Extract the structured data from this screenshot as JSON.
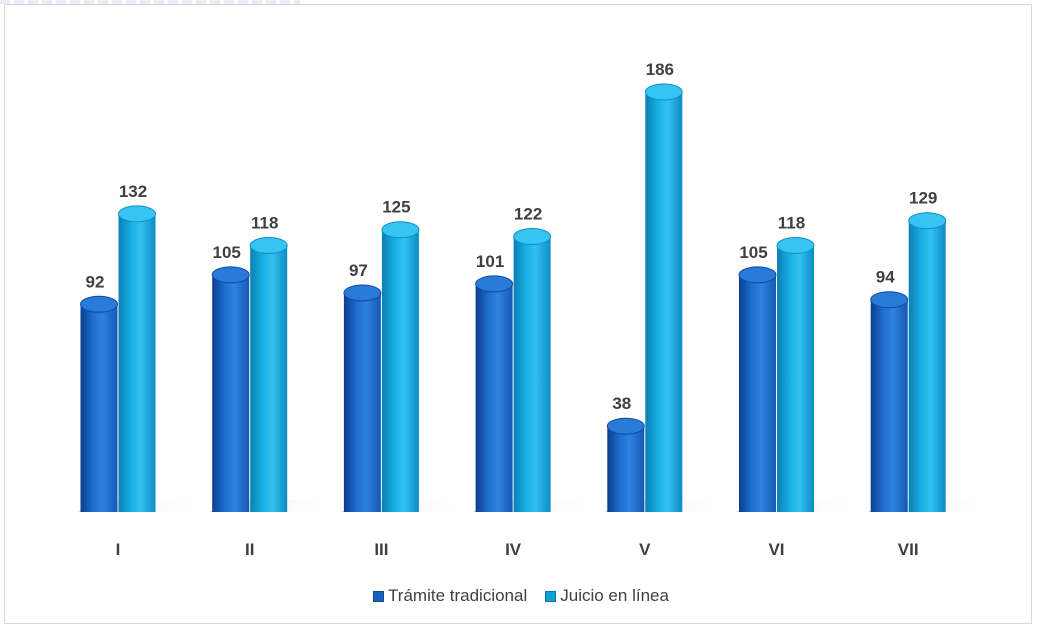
{
  "chart_data": {
    "type": "bar",
    "categories": [
      "I",
      "II",
      "III",
      "IV",
      "V",
      "VI",
      "VII"
    ],
    "series": [
      {
        "name": "Trámite tradicional",
        "values": [
          92,
          105,
          97,
          101,
          38,
          105,
          94
        ],
        "color": "#1565c0"
      },
      {
        "name": "Juicio en línea",
        "values": [
          132,
          118,
          125,
          122,
          186,
          118,
          129
        ],
        "color": "#0fa0d6"
      }
    ],
    "ylim": [
      0,
      186
    ],
    "grid": false,
    "legend_position": "bottom",
    "data_labels": true
  },
  "legend": {
    "items": [
      "Trámite tradicional",
      "Juicio en línea"
    ]
  }
}
